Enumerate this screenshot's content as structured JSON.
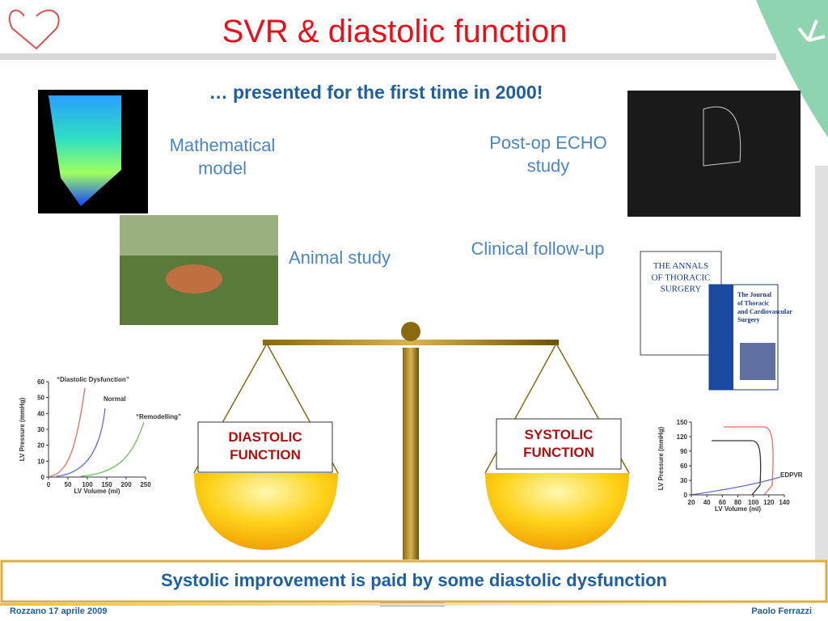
{
  "header": {
    "title": "SVR & diastolic function"
  },
  "headline": "… presented for the first time in 2000!",
  "labels": [
    "Mathematical model",
    "Post-op ECHO study",
    "Animal study",
    "Clinical follow-up"
  ],
  "scale": {
    "left": "DIASTOLIC FUNCTION",
    "right": "SYSTOLIC FUNCTION"
  },
  "covers": {
    "annals": "THE ANNALS OF THORACIC SURGERY",
    "journal": "The Journal of Thoracic and Cardiovascular Surgery"
  },
  "figures": {
    "left": {
      "ylabel": "LV Pressure (mmHg)",
      "xlabel": "LV Volume (ml)",
      "yticks": [
        0,
        10,
        20,
        30,
        40,
        50,
        60
      ],
      "xticks": [
        0,
        50,
        100,
        150,
        200,
        250
      ],
      "annotations": [
        "“Diastolic Dysfunction”",
        "Normal",
        "“Remodelling”"
      ]
    },
    "right": {
      "ylabel": "LV Pressure (mmHg)",
      "xlabel": "LV Volume (ml)",
      "yticks": [
        0,
        30,
        60,
        90,
        120,
        150
      ],
      "xticks": [
        20,
        40,
        60,
        80,
        100,
        120,
        140
      ],
      "annotations": [
        "EDPVR"
      ]
    }
  },
  "conclusion": "Systolic improvement is paid by some diastolic dysfunction",
  "footer": {
    "left": "Rozzano 17 aprile 2009",
    "right": "Paolo Ferrazzi"
  }
}
